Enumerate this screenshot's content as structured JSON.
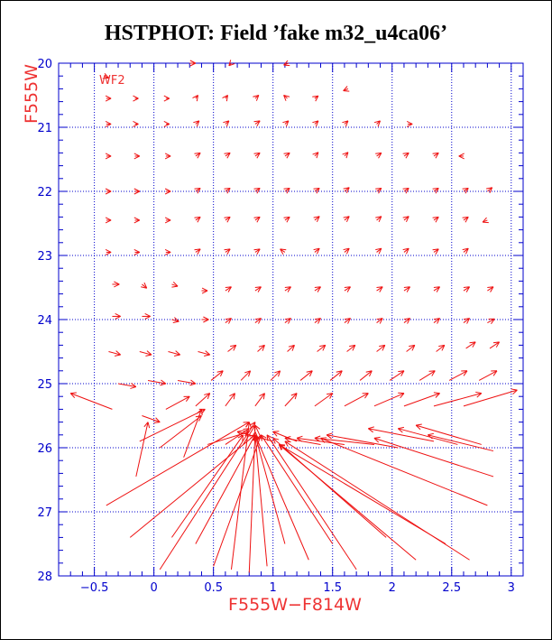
{
  "title": "HSTPHOT: Field ’fake m32_u4ca06’",
  "colors": {
    "frame": "#0000cc",
    "grid": "#0000cc",
    "arrows": "#ee1111",
    "text_blue": "#0000cc",
    "text_red": "#ee3333",
    "title": "#000000"
  },
  "chart_data": {
    "type": "quiver",
    "title": "HSTPHOT: Field ’fake m32_u4ca06’",
    "xlabel": "F555W−F814W",
    "ylabel": "F555W",
    "annotation": "WF2",
    "xlim": [
      -0.8,
      3.1
    ],
    "ylim": [
      20,
      28
    ],
    "y_inverted": true,
    "grid": true,
    "xticks": [
      -0.5,
      0,
      0.5,
      1,
      1.5,
      2,
      2.5,
      3
    ],
    "xtick_labels": [
      "−0.5",
      "0",
      "0.5",
      "1",
      "1.5",
      "2",
      "2.5",
      "3"
    ],
    "yticks": [
      20,
      21,
      22,
      23,
      24,
      25,
      26,
      27,
      28
    ],
    "ytick_labels": [
      "20",
      "21",
      "22",
      "23",
      "24",
      "25",
      "26",
      "27",
      "28"
    ],
    "arrows": [
      {
        "x": 0.3,
        "y": 20.0,
        "dx": 0.05,
        "dy": 0.0
      },
      {
        "x": 0.65,
        "y": 20.0,
        "dx": -0.02,
        "dy": 0.04
      },
      {
        "x": 1.13,
        "y": 20.0,
        "dx": -0.04,
        "dy": 0.03
      },
      {
        "x": -0.42,
        "y": 20.2,
        "dx": 0.04,
        "dy": 0.03
      },
      {
        "x": -0.4,
        "y": 20.55,
        "dx": 0.04,
        "dy": 0.0
      },
      {
        "x": -0.16,
        "y": 20.55,
        "dx": 0.03,
        "dy": 0.0
      },
      {
        "x": 0.1,
        "y": 20.55,
        "dx": 0.03,
        "dy": 0.0
      },
      {
        "x": 0.35,
        "y": 20.55,
        "dx": 0.02,
        "dy": -0.05
      },
      {
        "x": 0.6,
        "y": 20.55,
        "dx": 0.02,
        "dy": -0.05
      },
      {
        "x": 0.85,
        "y": 20.55,
        "dx": 0.03,
        "dy": -0.05
      },
      {
        "x": 1.12,
        "y": 20.55,
        "dx": -0.03,
        "dy": -0.05
      },
      {
        "x": 1.35,
        "y": 20.55,
        "dx": 0.03,
        "dy": -0.04
      },
      {
        "x": 1.63,
        "y": 20.4,
        "dx": -0.04,
        "dy": 0.03
      },
      {
        "x": -0.4,
        "y": 20.95,
        "dx": 0.04,
        "dy": 0.0
      },
      {
        "x": -0.16,
        "y": 20.95,
        "dx": 0.03,
        "dy": 0.0
      },
      {
        "x": 0.1,
        "y": 20.95,
        "dx": 0.03,
        "dy": 0.0
      },
      {
        "x": 0.35,
        "y": 20.95,
        "dx": 0.03,
        "dy": -0.05
      },
      {
        "x": 0.6,
        "y": 20.95,
        "dx": 0.03,
        "dy": -0.05
      },
      {
        "x": 0.85,
        "y": 20.95,
        "dx": 0.04,
        "dy": -0.05
      },
      {
        "x": 1.1,
        "y": 20.95,
        "dx": 0.03,
        "dy": -0.05
      },
      {
        "x": 1.35,
        "y": 20.95,
        "dx": 0.03,
        "dy": -0.05
      },
      {
        "x": 1.6,
        "y": 20.95,
        "dx": 0.03,
        "dy": -0.05
      },
      {
        "x": 1.87,
        "y": 20.95,
        "dx": 0.03,
        "dy": -0.05
      },
      {
        "x": 2.13,
        "y": 20.95,
        "dx": 0.04,
        "dy": 0.0
      },
      {
        "x": -0.4,
        "y": 21.45,
        "dx": 0.04,
        "dy": 0.0
      },
      {
        "x": -0.16,
        "y": 21.45,
        "dx": 0.04,
        "dy": 0.0
      },
      {
        "x": 0.1,
        "y": 21.45,
        "dx": 0.04,
        "dy": 0.0
      },
      {
        "x": 0.35,
        "y": 21.45,
        "dx": 0.04,
        "dy": -0.05
      },
      {
        "x": 0.6,
        "y": 21.45,
        "dx": 0.04,
        "dy": -0.05
      },
      {
        "x": 0.85,
        "y": 21.45,
        "dx": 0.04,
        "dy": -0.05
      },
      {
        "x": 1.1,
        "y": 21.45,
        "dx": 0.04,
        "dy": -0.05
      },
      {
        "x": 1.35,
        "y": 21.45,
        "dx": 0.03,
        "dy": -0.06
      },
      {
        "x": 1.6,
        "y": 21.45,
        "dx": 0.03,
        "dy": -0.06
      },
      {
        "x": 1.87,
        "y": 21.45,
        "dx": 0.04,
        "dy": -0.05
      },
      {
        "x": 2.1,
        "y": 21.45,
        "dx": 0.04,
        "dy": -0.05
      },
      {
        "x": 2.35,
        "y": 21.45,
        "dx": 0.04,
        "dy": -0.05
      },
      {
        "x": 2.6,
        "y": 21.45,
        "dx": -0.04,
        "dy": 0.0
      },
      {
        "x": -0.4,
        "y": 22.0,
        "dx": 0.04,
        "dy": 0.0
      },
      {
        "x": -0.16,
        "y": 22.0,
        "dx": 0.04,
        "dy": 0.0
      },
      {
        "x": 0.1,
        "y": 22.0,
        "dx": 0.04,
        "dy": 0.0
      },
      {
        "x": 0.35,
        "y": 22.0,
        "dx": 0.04,
        "dy": -0.05
      },
      {
        "x": 0.6,
        "y": 22.0,
        "dx": 0.04,
        "dy": -0.05
      },
      {
        "x": 0.85,
        "y": 22.0,
        "dx": 0.04,
        "dy": -0.05
      },
      {
        "x": 1.1,
        "y": 22.0,
        "dx": 0.04,
        "dy": -0.05
      },
      {
        "x": 1.35,
        "y": 22.0,
        "dx": 0.04,
        "dy": -0.05
      },
      {
        "x": 1.6,
        "y": 22.0,
        "dx": 0.04,
        "dy": -0.06
      },
      {
        "x": 1.87,
        "y": 22.0,
        "dx": 0.04,
        "dy": -0.05
      },
      {
        "x": 2.1,
        "y": 22.0,
        "dx": 0.04,
        "dy": -0.05
      },
      {
        "x": 2.35,
        "y": 22.0,
        "dx": 0.04,
        "dy": -0.05
      },
      {
        "x": 2.6,
        "y": 22.0,
        "dx": 0.04,
        "dy": -0.05
      },
      {
        "x": 2.8,
        "y": 22.0,
        "dx": 0.04,
        "dy": -0.06
      },
      {
        "x": -0.4,
        "y": 22.45,
        "dx": 0.04,
        "dy": 0.0
      },
      {
        "x": -0.16,
        "y": 22.45,
        "dx": 0.04,
        "dy": 0.0
      },
      {
        "x": 0.1,
        "y": 22.45,
        "dx": 0.04,
        "dy": 0.0
      },
      {
        "x": 0.35,
        "y": 22.45,
        "dx": 0.04,
        "dy": -0.05
      },
      {
        "x": 0.6,
        "y": 22.45,
        "dx": 0.04,
        "dy": -0.05
      },
      {
        "x": 0.85,
        "y": 22.45,
        "dx": 0.04,
        "dy": -0.05
      },
      {
        "x": 1.1,
        "y": 22.45,
        "dx": 0.04,
        "dy": -0.05
      },
      {
        "x": 1.35,
        "y": 22.45,
        "dx": 0.04,
        "dy": -0.06
      },
      {
        "x": 1.6,
        "y": 22.45,
        "dx": 0.04,
        "dy": -0.06
      },
      {
        "x": 1.87,
        "y": 22.45,
        "dx": 0.04,
        "dy": -0.06
      },
      {
        "x": 2.1,
        "y": 22.45,
        "dx": 0.04,
        "dy": -0.06
      },
      {
        "x": 2.35,
        "y": 22.45,
        "dx": 0.04,
        "dy": -0.05
      },
      {
        "x": 2.6,
        "y": 22.45,
        "dx": 0.04,
        "dy": -0.05
      },
      {
        "x": 2.8,
        "y": 22.45,
        "dx": -0.04,
        "dy": 0.03
      },
      {
        "x": -0.4,
        "y": 22.95,
        "dx": 0.04,
        "dy": 0.0
      },
      {
        "x": -0.16,
        "y": 22.95,
        "dx": 0.04,
        "dy": 0.0
      },
      {
        "x": 0.1,
        "y": 22.95,
        "dx": 0.04,
        "dy": 0.0
      },
      {
        "x": 0.35,
        "y": 22.95,
        "dx": 0.04,
        "dy": -0.05
      },
      {
        "x": 0.6,
        "y": 22.95,
        "dx": 0.04,
        "dy": -0.05
      },
      {
        "x": 0.85,
        "y": 22.95,
        "dx": 0.04,
        "dy": -0.05
      },
      {
        "x": 1.1,
        "y": 22.95,
        "dx": -0.04,
        "dy": -0.05
      },
      {
        "x": 1.35,
        "y": 22.95,
        "dx": 0.04,
        "dy": -0.06
      },
      {
        "x": 1.6,
        "y": 22.95,
        "dx": 0.04,
        "dy": -0.06
      },
      {
        "x": 1.87,
        "y": 22.95,
        "dx": 0.04,
        "dy": -0.06
      },
      {
        "x": 2.1,
        "y": 22.95,
        "dx": 0.04,
        "dy": -0.06
      },
      {
        "x": 2.35,
        "y": 22.95,
        "dx": 0.04,
        "dy": -0.05
      },
      {
        "x": 2.6,
        "y": 22.95,
        "dx": 0.04,
        "dy": -0.06
      },
      {
        "x": -0.35,
        "y": 23.45,
        "dx": 0.06,
        "dy": 0.0
      },
      {
        "x": -0.1,
        "y": 23.45,
        "dx": 0.04,
        "dy": 0.06
      },
      {
        "x": 0.15,
        "y": 23.45,
        "dx": 0.05,
        "dy": 0.03
      },
      {
        "x": 0.4,
        "y": 23.55,
        "dx": 0.05,
        "dy": 0.0
      },
      {
        "x": 0.6,
        "y": 23.55,
        "dx": 0.05,
        "dy": -0.06
      },
      {
        "x": 0.85,
        "y": 23.55,
        "dx": 0.05,
        "dy": -0.06
      },
      {
        "x": 1.1,
        "y": 23.55,
        "dx": 0.05,
        "dy": -0.06
      },
      {
        "x": 1.35,
        "y": 23.55,
        "dx": 0.05,
        "dy": -0.06
      },
      {
        "x": 1.6,
        "y": 23.55,
        "dx": 0.05,
        "dy": -0.06
      },
      {
        "x": 1.87,
        "y": 23.55,
        "dx": 0.05,
        "dy": -0.06
      },
      {
        "x": 2.1,
        "y": 23.55,
        "dx": 0.05,
        "dy": -0.06
      },
      {
        "x": 2.35,
        "y": 23.55,
        "dx": 0.05,
        "dy": -0.06
      },
      {
        "x": 2.6,
        "y": 23.55,
        "dx": 0.05,
        "dy": -0.06
      },
      {
        "x": 2.8,
        "y": 23.55,
        "dx": 0.05,
        "dy": -0.06
      },
      {
        "x": -0.35,
        "y": 23.95,
        "dx": 0.07,
        "dy": 0.0
      },
      {
        "x": -0.1,
        "y": 23.95,
        "dx": 0.07,
        "dy": 0.0
      },
      {
        "x": 0.15,
        "y": 24.0,
        "dx": 0.06,
        "dy": 0.03
      },
      {
        "x": 0.4,
        "y": 24.0,
        "dx": 0.06,
        "dy": 0.0
      },
      {
        "x": 0.6,
        "y": 24.05,
        "dx": 0.05,
        "dy": -0.07
      },
      {
        "x": 0.85,
        "y": 24.05,
        "dx": 0.05,
        "dy": -0.07
      },
      {
        "x": 1.1,
        "y": 24.05,
        "dx": 0.05,
        "dy": -0.07
      },
      {
        "x": 1.35,
        "y": 24.05,
        "dx": 0.05,
        "dy": -0.07
      },
      {
        "x": 1.6,
        "y": 24.05,
        "dx": 0.05,
        "dy": -0.07
      },
      {
        "x": 1.87,
        "y": 24.05,
        "dx": 0.05,
        "dy": -0.07
      },
      {
        "x": 2.1,
        "y": 24.05,
        "dx": 0.05,
        "dy": -0.07
      },
      {
        "x": 2.35,
        "y": 24.05,
        "dx": 0.05,
        "dy": -0.07
      },
      {
        "x": 2.6,
        "y": 24.05,
        "dx": 0.05,
        "dy": -0.07
      },
      {
        "x": 2.8,
        "y": 24.05,
        "dx": 0.06,
        "dy": -0.06
      },
      {
        "x": -0.38,
        "y": 24.5,
        "dx": 0.1,
        "dy": 0.05
      },
      {
        "x": -0.12,
        "y": 24.5,
        "dx": 0.1,
        "dy": 0.05
      },
      {
        "x": 0.12,
        "y": 24.5,
        "dx": 0.1,
        "dy": 0.05
      },
      {
        "x": 0.37,
        "y": 24.5,
        "dx": 0.1,
        "dy": 0.05
      },
      {
        "x": 0.62,
        "y": 24.5,
        "dx": 0.07,
        "dy": -0.1
      },
      {
        "x": 0.87,
        "y": 24.5,
        "dx": 0.06,
        "dy": -0.1
      },
      {
        "x": 1.12,
        "y": 24.5,
        "dx": 0.06,
        "dy": -0.1
      },
      {
        "x": 1.37,
        "y": 24.5,
        "dx": 0.07,
        "dy": -0.1
      },
      {
        "x": 1.62,
        "y": 24.5,
        "dx": 0.07,
        "dy": -0.1
      },
      {
        "x": 1.87,
        "y": 24.5,
        "dx": 0.07,
        "dy": -0.1
      },
      {
        "x": 2.12,
        "y": 24.5,
        "dx": 0.07,
        "dy": -0.1
      },
      {
        "x": 2.37,
        "y": 24.5,
        "dx": 0.07,
        "dy": -0.1
      },
      {
        "x": 2.62,
        "y": 24.45,
        "dx": 0.08,
        "dy": -0.1
      },
      {
        "x": 2.82,
        "y": 24.45,
        "dx": 0.08,
        "dy": -0.1
      },
      {
        "x": -0.3,
        "y": 25.0,
        "dx": 0.15,
        "dy": 0.05
      },
      {
        "x": -0.05,
        "y": 24.95,
        "dx": 0.15,
        "dy": 0.05
      },
      {
        "x": 0.2,
        "y": 24.95,
        "dx": 0.15,
        "dy": 0.05
      },
      {
        "x": 0.48,
        "y": 24.95,
        "dx": 0.1,
        "dy": -0.15
      },
      {
        "x": 0.73,
        "y": 24.95,
        "dx": 0.08,
        "dy": -0.15
      },
      {
        "x": 0.98,
        "y": 24.95,
        "dx": 0.08,
        "dy": -0.15
      },
      {
        "x": 1.23,
        "y": 24.95,
        "dx": 0.1,
        "dy": -0.15
      },
      {
        "x": 1.48,
        "y": 24.95,
        "dx": 0.1,
        "dy": -0.15
      },
      {
        "x": 1.73,
        "y": 24.95,
        "dx": 0.1,
        "dy": -0.15
      },
      {
        "x": 1.98,
        "y": 24.95,
        "dx": 0.12,
        "dy": -0.15
      },
      {
        "x": 2.23,
        "y": 24.95,
        "dx": 0.13,
        "dy": -0.15
      },
      {
        "x": 2.48,
        "y": 24.95,
        "dx": 0.15,
        "dy": -0.15
      },
      {
        "x": 2.73,
        "y": 24.95,
        "dx": 0.15,
        "dy": -0.15
      },
      {
        "x": -0.35,
        "y": 25.4,
        "dx": -0.35,
        "dy": -0.25
      },
      {
        "x": -0.1,
        "y": 25.5,
        "dx": 0.15,
        "dy": 0.1
      },
      {
        "x": 0.1,
        "y": 25.4,
        "dx": 0.2,
        "dy": -0.2
      },
      {
        "x": 0.35,
        "y": 25.35,
        "dx": 0.12,
        "dy": -0.2
      },
      {
        "x": 0.6,
        "y": 25.35,
        "dx": 0.08,
        "dy": -0.2
      },
      {
        "x": 0.85,
        "y": 25.35,
        "dx": 0.08,
        "dy": -0.2
      },
      {
        "x": 1.1,
        "y": 25.35,
        "dx": 0.1,
        "dy": -0.2
      },
      {
        "x": 1.35,
        "y": 25.35,
        "dx": 0.15,
        "dy": -0.2
      },
      {
        "x": 1.6,
        "y": 25.35,
        "dx": 0.2,
        "dy": -0.2
      },
      {
        "x": 1.85,
        "y": 25.35,
        "dx": 0.25,
        "dy": -0.2
      },
      {
        "x": 2.1,
        "y": 25.35,
        "dx": 0.3,
        "dy": -0.2
      },
      {
        "x": 2.35,
        "y": 25.35,
        "dx": 0.4,
        "dy": -0.2
      },
      {
        "x": 2.6,
        "y": 25.35,
        "dx": 0.45,
        "dy": -0.25
      },
      {
        "x": -0.15,
        "y": 26.45,
        "dx": 0.1,
        "dy": -0.85
      },
      {
        "x": -0.12,
        "y": 25.9,
        "dx": 0.55,
        "dy": -0.5
      },
      {
        "x": 0.05,
        "y": 26.0,
        "dx": 0.35,
        "dy": -0.5
      },
      {
        "x": 0.25,
        "y": 26.15,
        "dx": 0.15,
        "dy": -0.75
      },
      {
        "x": -0.4,
        "y": 26.9,
        "dx": 1.2,
        "dy": -1.3
      },
      {
        "x": -0.2,
        "y": 27.4,
        "dx": 1.05,
        "dy": -1.6
      },
      {
        "x": 0.05,
        "y": 27.9,
        "dx": 0.8,
        "dy": -2.3
      },
      {
        "x": 0.15,
        "y": 27.4,
        "dx": 0.6,
        "dy": -1.6
      },
      {
        "x": 0.35,
        "y": 27.5,
        "dx": 0.5,
        "dy": -1.7
      },
      {
        "x": 0.5,
        "y": 27.85,
        "dx": 0.4,
        "dy": -2.05
      },
      {
        "x": 0.65,
        "y": 27.9,
        "dx": 0.15,
        "dy": -2.3
      },
      {
        "x": 0.8,
        "y": 27.95,
        "dx": 0.05,
        "dy": -2.2
      },
      {
        "x": 0.95,
        "y": 27.85,
        "dx": -0.1,
        "dy": -2.05
      },
      {
        "x": 1.1,
        "y": 27.5,
        "dx": -0.25,
        "dy": -1.7
      },
      {
        "x": 1.3,
        "y": 27.75,
        "dx": -0.45,
        "dy": -1.95
      },
      {
        "x": 1.5,
        "y": 27.5,
        "dx": -0.6,
        "dy": -1.7
      },
      {
        "x": 1.7,
        "y": 27.9,
        "dx": -0.75,
        "dy": -2.1
      },
      {
        "x": 1.95,
        "y": 27.4,
        "dx": -0.95,
        "dy": -1.55
      },
      {
        "x": 2.2,
        "y": 27.75,
        "dx": -1.15,
        "dy": -1.8
      },
      {
        "x": 2.45,
        "y": 27.5,
        "dx": -1.4,
        "dy": -1.55
      },
      {
        "x": 2.65,
        "y": 27.75,
        "dx": -1.55,
        "dy": -1.85
      },
      {
        "x": 2.8,
        "y": 26.9,
        "dx": -1.4,
        "dy": -1.05
      },
      {
        "x": 2.85,
        "y": 26.45,
        "dx": -1.0,
        "dy": -0.6
      },
      {
        "x": 2.85,
        "y": 26.05,
        "dx": -0.55,
        "dy": -0.25
      },
      {
        "x": 1.0,
        "y": 25.9,
        "dx": -0.3,
        "dy": -0.15
      },
      {
        "x": 0.75,
        "y": 25.95,
        "dx": 0.1,
        "dy": -0.3
      },
      {
        "x": 0.9,
        "y": 25.85,
        "dx": -0.05,
        "dy": -0.2
      },
      {
        "x": 0.6,
        "y": 25.95,
        "dx": 0.2,
        "dy": -0.25
      },
      {
        "x": 0.45,
        "y": 25.95,
        "dx": 0.35,
        "dy": -0.2
      },
      {
        "x": 1.2,
        "y": 25.9,
        "dx": -0.2,
        "dy": -0.15
      },
      {
        "x": 1.4,
        "y": 25.95,
        "dx": -0.3,
        "dy": -0.1
      },
      {
        "x": 1.6,
        "y": 25.95,
        "dx": -0.4,
        "dy": -0.1
      },
      {
        "x": 1.85,
        "y": 25.95,
        "dx": -0.5,
        "dy": -0.1
      },
      {
        "x": 2.05,
        "y": 26.0,
        "dx": -0.6,
        "dy": -0.2
      },
      {
        "x": 2.35,
        "y": 25.9,
        "dx": -0.55,
        "dy": -0.2
      },
      {
        "x": 2.55,
        "y": 25.95,
        "dx": -0.5,
        "dy": -0.25
      },
      {
        "x": 2.75,
        "y": 25.95,
        "dx": -0.55,
        "dy": -0.3
      }
    ]
  }
}
